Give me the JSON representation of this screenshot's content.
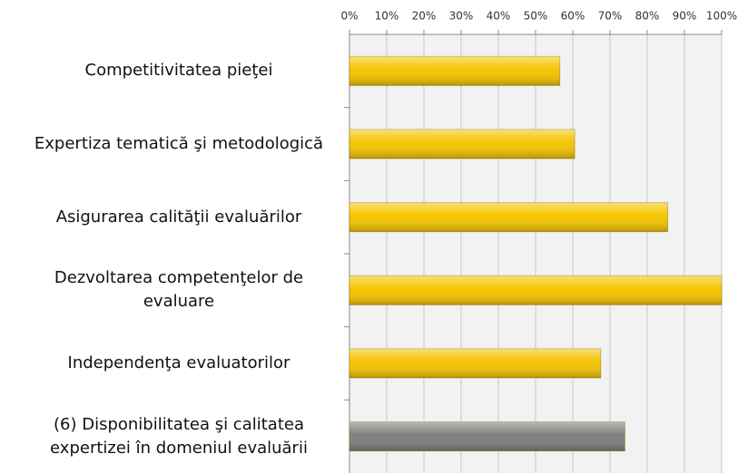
{
  "chart_data": {
    "type": "bar",
    "orientation": "horizontal",
    "categories": [
      "Competitivitatea pieţei",
      "Expertiza tematică şi metodologică",
      "Asigurarea calităţii evaluărilor",
      "Dezvoltarea competenţelor de\nevaluare",
      "Independenţa evaluatorilor",
      "(6) Disponibilitatea şi calitatea\nexpertizei în domeniul evaluării"
    ],
    "values": [
      56.5,
      60.5,
      85.5,
      100,
      67.5,
      74
    ],
    "colors": [
      "#f5c400",
      "#f5c400",
      "#f5c400",
      "#f5c400",
      "#f5c400",
      "#7f7f7f"
    ],
    "xlim": [
      0,
      100
    ],
    "xticks": [
      {
        "value": 0,
        "label": "0%"
      },
      {
        "value": 10,
        "label": "10%"
      },
      {
        "value": 20,
        "label": "20%"
      },
      {
        "value": 30,
        "label": "30%"
      },
      {
        "value": 40,
        "label": "40%"
      },
      {
        "value": 50,
        "label": "50%"
      },
      {
        "value": 60,
        "label": "60%"
      },
      {
        "value": 70,
        "label": "70%"
      },
      {
        "value": 80,
        "label": "80%"
      },
      {
        "value": 90,
        "label": "90%"
      },
      {
        "value": 100,
        "label": "100%"
      }
    ],
    "grid": true
  }
}
